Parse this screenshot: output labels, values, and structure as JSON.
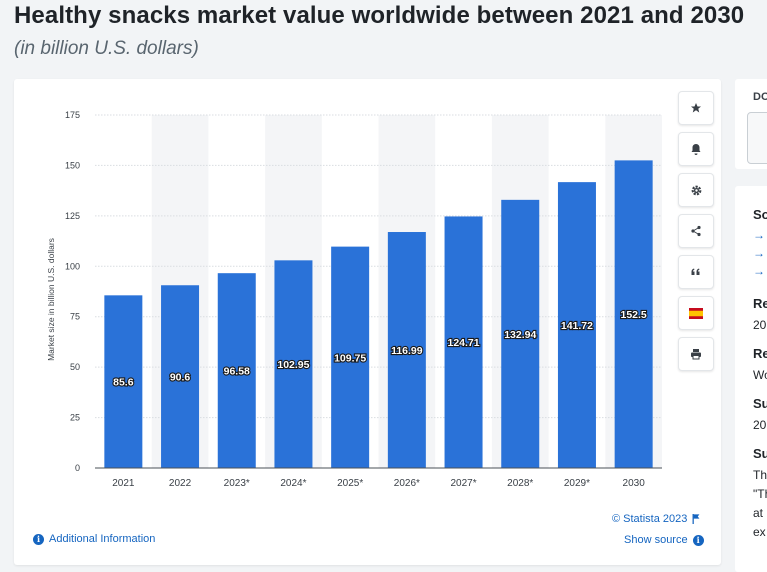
{
  "page": {
    "title": "Healthy snacks market value worldwide between 2021 and 2030",
    "subtitle": "(in billion U.S. dollars)"
  },
  "toolbar": {
    "buttons": [
      {
        "icon": "star-icon"
      },
      {
        "icon": "bell-icon"
      },
      {
        "icon": "gear-icon"
      },
      {
        "icon": "share-icon"
      },
      {
        "icon": "quote-icon"
      },
      {
        "icon": "flag-spain-icon"
      },
      {
        "icon": "print-icon"
      }
    ]
  },
  "footer": {
    "additional_info": "Additional Information",
    "copyright": "© Statista 2023",
    "show_source": "Show source"
  },
  "right_panel": {
    "top_label": "DO",
    "items": [
      {
        "text": "So",
        "style": "head"
      },
      {
        "text": "→",
        "style": "arrow"
      },
      {
        "text": "→",
        "style": "arrow"
      },
      {
        "text": "→",
        "style": "arrow"
      },
      {
        "text": "Re",
        "style": "head"
      },
      {
        "text": "20",
        "style": "normal"
      },
      {
        "text": "Re",
        "style": "head"
      },
      {
        "text": "Wo",
        "style": "normal"
      },
      {
        "text": "Su",
        "style": "head"
      },
      {
        "text": "20",
        "style": "normal"
      },
      {
        "text": "Su",
        "style": "head"
      },
      {
        "text": "Th",
        "style": "normal"
      },
      {
        "text": "\"Th",
        "style": "normal"
      },
      {
        "text": "at",
        "style": "normal"
      },
      {
        "text": "ex",
        "style": "normal"
      }
    ]
  },
  "colors": {
    "bar": "#2a72d8",
    "band": "#f4f5f7",
    "link": "#1565c0"
  },
  "chart_data": {
    "type": "bar",
    "categories": [
      "2021",
      "2022",
      "2023*",
      "2024*",
      "2025*",
      "2026*",
      "2027*",
      "2028*",
      "2029*",
      "2030"
    ],
    "values": [
      85.6,
      90.6,
      96.58,
      102.95,
      109.75,
      116.99,
      124.71,
      132.94,
      141.72,
      152.5
    ],
    "labels": [
      "85.6",
      "90.6",
      "96.58",
      "102.95",
      "109.75",
      "116.99",
      "124.71",
      "132.94",
      "141.72",
      "152.5"
    ],
    "ylabel": "Market size in billion U.S. dollars",
    "ylim": [
      0,
      175
    ],
    "yticks": [
      "0",
      "25",
      "50",
      "75",
      "100",
      "125",
      "150",
      "175"
    ],
    "grid": true
  }
}
